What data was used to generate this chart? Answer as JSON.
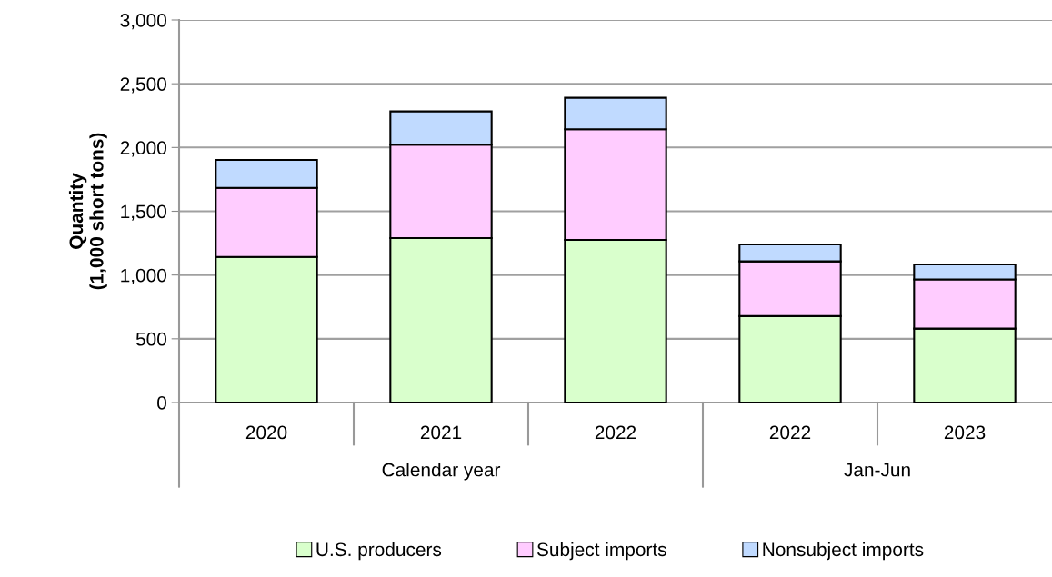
{
  "chart_data": {
    "type": "bar",
    "stacked": true,
    "ylabel": "Quantity\n(1,000 short tons)",
    "categories": [
      "2020",
      "2021",
      "2022",
      "2022",
      "2023"
    ],
    "series": [
      {
        "name": "U.S. producers",
        "color": "#d9ffcc",
        "values": [
          1142,
          1290,
          1275,
          678,
          580
        ]
      },
      {
        "name": "Subject imports",
        "color": "#ffccff",
        "values": [
          541,
          732,
          868,
          429,
          385
        ]
      },
      {
        "name": "Nonsubject imports",
        "color": "#c0daff",
        "values": [
          220,
          261,
          247,
          133,
          118
        ]
      }
    ],
    "ylim": [
      0,
      3000
    ],
    "yticks": [
      {
        "value": 0,
        "label": "0"
      },
      {
        "value": 500,
        "label": "500"
      },
      {
        "value": 1000,
        "label": "1,000"
      },
      {
        "value": 1500,
        "label": "1,500"
      },
      {
        "value": 2000,
        "label": "2,000"
      },
      {
        "value": 2500,
        "label": "2,500"
      },
      {
        "value": 3000,
        "label": "3,000"
      }
    ],
    "grid": "y",
    "legend": "bottom",
    "annotations": [
      "Calendar year",
      "Jan-Jun"
    ]
  }
}
